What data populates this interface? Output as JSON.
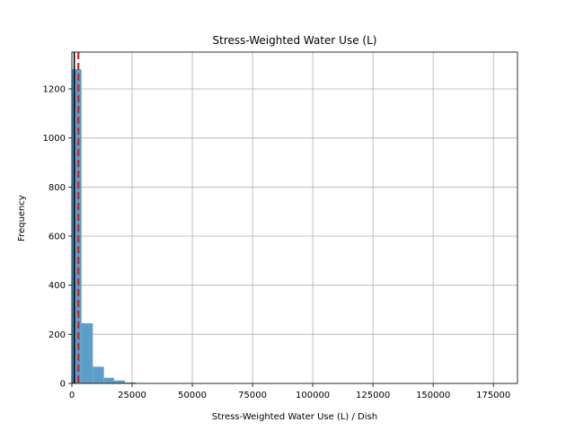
{
  "chart_data": {
    "type": "bar",
    "subtype": "histogram",
    "title": "Stress-Weighted Water Use (L)",
    "xlabel": "Stress-Weighted Water Use (L) / Dish",
    "ylabel": "Frequency",
    "xlim": [
      0,
      185000
    ],
    "ylim": [
      0,
      1350
    ],
    "xticks": [
      0,
      25000,
      50000,
      75000,
      100000,
      125000,
      150000,
      175000
    ],
    "xtick_labels": [
      "0",
      "25000",
      "50000",
      "75000",
      "100000",
      "125000",
      "150000",
      "175000"
    ],
    "yticks": [
      0,
      200,
      400,
      600,
      800,
      1000,
      1200
    ],
    "ytick_labels": [
      "0",
      "200",
      "400",
      "600",
      "800",
      "1000",
      "1200"
    ],
    "grid": true,
    "bar_color": "#5b9ec9",
    "bins": [
      {
        "x0": 0,
        "x1": 4000,
        "count": 1280
      },
      {
        "x0": 4000,
        "x1": 8700,
        "count": 245
      },
      {
        "x0": 8700,
        "x1": 13300,
        "count": 68
      },
      {
        "x0": 13300,
        "x1": 17500,
        "count": 23
      },
      {
        "x0": 17500,
        "x1": 22000,
        "count": 12
      },
      {
        "x0": 22000,
        "x1": 26500,
        "count": 4
      },
      {
        "x0": 26500,
        "x1": 31000,
        "count": 1
      }
    ],
    "reference_lines": [
      {
        "x": 1000,
        "color": "#000000",
        "style": "solid"
      },
      {
        "x": 2700,
        "color": "#e41a1c",
        "style": "dashed"
      }
    ]
  }
}
